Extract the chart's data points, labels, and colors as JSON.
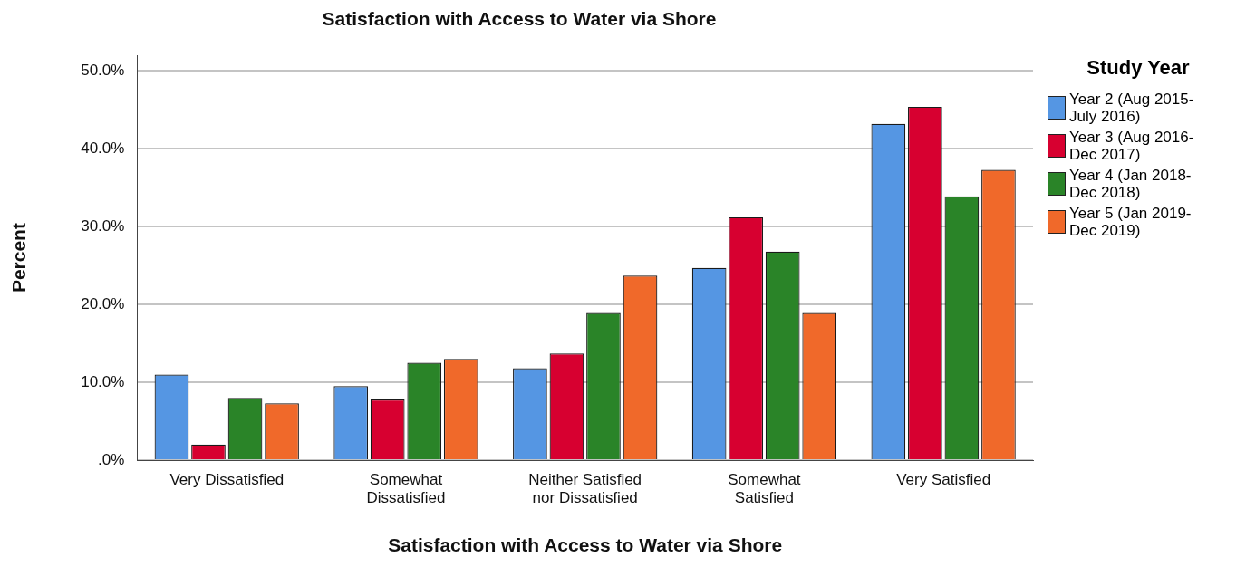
{
  "chart_data": {
    "type": "bar",
    "title": "Satisfaction with Access to Water via Shore",
    "xlabel": "Satisfaction with Access to Water via Shore",
    "ylabel": "Percent",
    "legend_title": "Study Year",
    "categories": [
      "Very Dissatisfied",
      "Somewhat Dissatisfied",
      "Neither Satisfied nor Dissatisfied",
      "Somewhat Satisfied",
      "Very Satisfied"
    ],
    "series": [
      {
        "name": "Year 2 (Aug 2015-July 2016)",
        "color": "#5596e3",
        "values": [
          11.0,
          9.5,
          11.8,
          24.7,
          43.2
        ]
      },
      {
        "name": "Year 3 (Aug 2016-Dec 2017)",
        "color": "#d70030",
        "values": [
          2.0,
          7.8,
          13.7,
          31.2,
          45.4
        ]
      },
      {
        "name": "Year 4 (Jan 2018-Dec 2018)",
        "color": "#2a8428",
        "values": [
          8.0,
          12.5,
          18.9,
          26.8,
          33.9
        ]
      },
      {
        "name": "Year 5 (Jan 2019-Dec 2019)",
        "color": "#f0692a",
        "values": [
          7.3,
          13.0,
          23.7,
          18.9,
          37.3
        ]
      }
    ],
    "ylim": [
      0,
      52
    ],
    "yticks": [
      {
        "value": 0,
        "label": ".0%"
      },
      {
        "value": 10,
        "label": "10.0%"
      },
      {
        "value": 20,
        "label": "20.0%"
      },
      {
        "value": 30,
        "label": "30.0%"
      },
      {
        "value": 40,
        "label": "40.0%"
      },
      {
        "value": 50,
        "label": "50.0%"
      }
    ],
    "grid": "y",
    "legend": "right"
  }
}
